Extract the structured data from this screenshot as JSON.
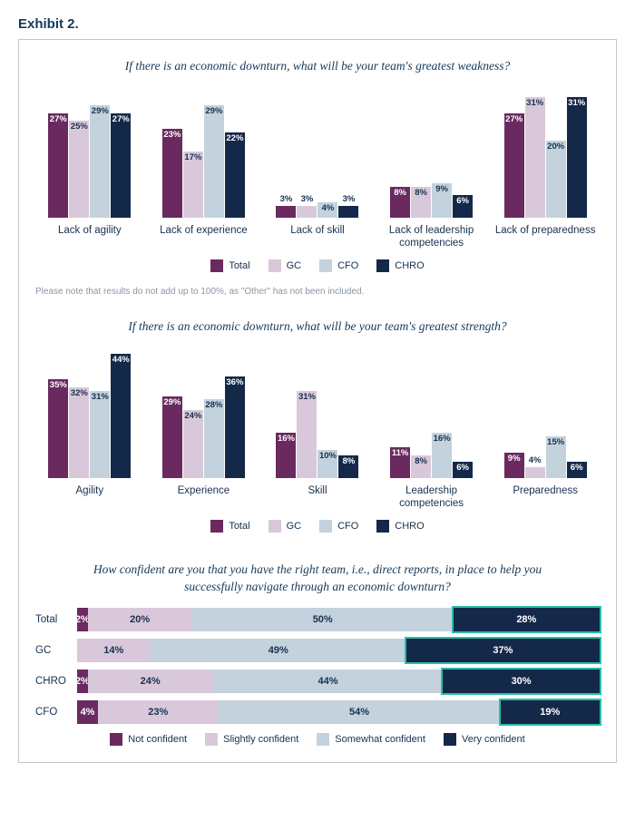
{
  "exhibit_label": "Exhibit 2.",
  "colors": {
    "total": "#6a2a60",
    "gc": "#d9c8da",
    "cfo": "#c3d2dd",
    "chro": "#14284a",
    "text_dark": "#16314f",
    "text_light": "#ffffff",
    "highlight": "#2bbfa8"
  },
  "chart1": {
    "title": "If there is an economic downturn, what will be your team's greatest weakness?",
    "ymax": 35,
    "series": [
      "Total",
      "GC",
      "CFO",
      "CHRO"
    ],
    "series_colors": [
      "#6a2a60",
      "#d9c8da",
      "#c3d2dd",
      "#14284a"
    ],
    "value_text_colors": [
      "#ffffff",
      "#16314f",
      "#16314f",
      "#ffffff"
    ],
    "categories": [
      "Lack of agility",
      "Lack of experience",
      "Lack of skill",
      "Lack of leadership competencies",
      "Lack of preparedness"
    ],
    "values": [
      [
        27,
        25,
        29,
        27
      ],
      [
        23,
        17,
        29,
        22
      ],
      [
        3,
        3,
        4,
        3
      ],
      [
        8,
        8,
        9,
        6
      ],
      [
        27,
        31,
        20,
        31
      ]
    ],
    "footnote": "Please note that results do not add up to 100%, as \"Other\" has not been included."
  },
  "chart2": {
    "title": "If there is an economic downturn, what will be your team's greatest strength?",
    "ymax": 48,
    "series": [
      "Total",
      "GC",
      "CFO",
      "CHRO"
    ],
    "series_colors": [
      "#6a2a60",
      "#d9c8da",
      "#c3d2dd",
      "#14284a"
    ],
    "value_text_colors": [
      "#ffffff",
      "#16314f",
      "#16314f",
      "#ffffff"
    ],
    "categories": [
      "Agility",
      "Experience",
      "Skill",
      "Leadership competencies",
      "Preparedness"
    ],
    "values": [
      [
        35,
        32,
        31,
        44
      ],
      [
        29,
        24,
        28,
        36
      ],
      [
        16,
        31,
        10,
        8
      ],
      [
        11,
        8,
        16,
        6
      ],
      [
        9,
        4,
        15,
        6
      ]
    ]
  },
  "chart3": {
    "title": "How confident are you that you have the right team, i.e., direct reports, in place to help you successfully navigate through an economic downturn?",
    "series": [
      "Not confident",
      "Slightly confident",
      "Somewhat confident",
      "Very confident"
    ],
    "series_colors": [
      "#6a2a60",
      "#d9c8da",
      "#c3d2dd",
      "#14284a"
    ],
    "value_text_colors": [
      "#ffffff",
      "#16314f",
      "#16314f",
      "#ffffff"
    ],
    "highlight_index": 3,
    "rows": [
      {
        "label": "Total",
        "values": [
          2,
          20,
          50,
          28
        ],
        "hide_value_index": null
      },
      {
        "label": "GC",
        "values": [
          0,
          14,
          49,
          37
        ],
        "hide_value_index": 0
      },
      {
        "label": "CHRO",
        "values": [
          2,
          24,
          44,
          30
        ],
        "hide_value_index": null
      },
      {
        "label": "CFO",
        "values": [
          4,
          23,
          54,
          19
        ],
        "hide_value_index": null
      }
    ]
  }
}
